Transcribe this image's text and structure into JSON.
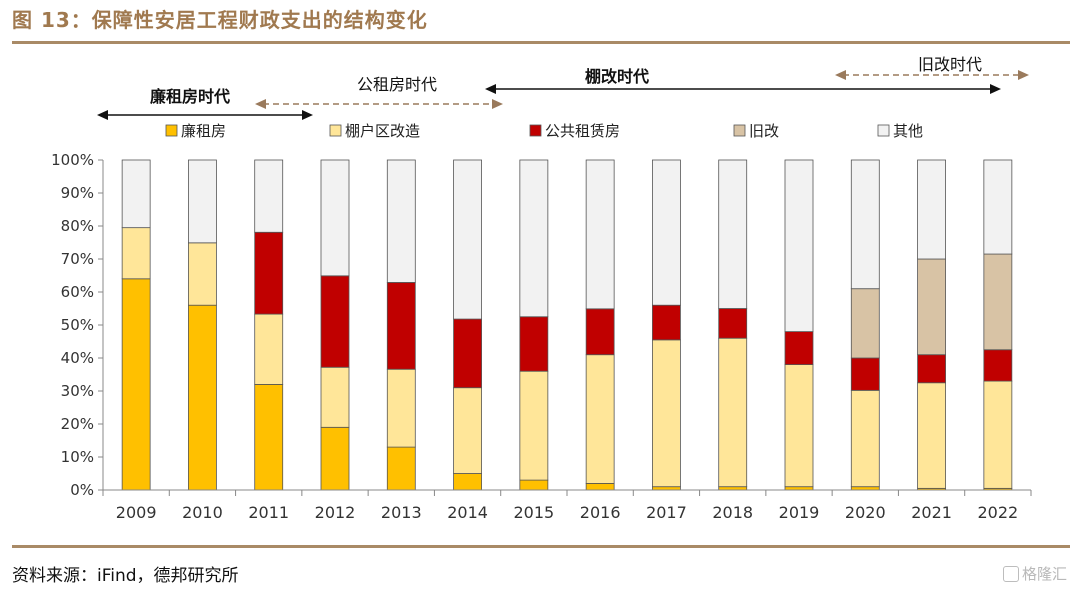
{
  "figure_title": "图 13：保障性安居工程财政支出的结构变化",
  "source_note": "资料来源：iFind，德邦研究所",
  "watermark": "格隆汇",
  "chart_data": {
    "type": "bar",
    "stacked": true,
    "categories": [
      "2009",
      "2010",
      "2011",
      "2012",
      "2013",
      "2014",
      "2015",
      "2016",
      "2017",
      "2018",
      "2019",
      "2020",
      "2021",
      "2022"
    ],
    "y_ticks": [
      "0%",
      "10%",
      "20%",
      "30%",
      "40%",
      "50%",
      "60%",
      "70%",
      "80%",
      "90%",
      "100%"
    ],
    "ylim": [
      0,
      100
    ],
    "legend_position": "top",
    "series": [
      {
        "name": "廉租房",
        "color": "#ffc000",
        "values": [
          64,
          56,
          32,
          19,
          13,
          5,
          3,
          2,
          1,
          1,
          1,
          1,
          0.5,
          0.5
        ]
      },
      {
        "name": "棚户区改造",
        "color": "#ffe699",
        "values": [
          15.5,
          18.9,
          21.3,
          18.2,
          23.6,
          26,
          33,
          39,
          44.5,
          45,
          37,
          29.2,
          32,
          32.5
        ]
      },
      {
        "name": "公共租赁房",
        "color": "#c00000",
        "values": [
          0,
          0,
          24.8,
          27.7,
          26.3,
          20.8,
          16.5,
          13.9,
          10.5,
          9,
          10,
          9.8,
          8.5,
          9.5
        ]
      },
      {
        "name": "旧改",
        "color": "#d8c3a5",
        "values": [
          0,
          0,
          0,
          0,
          0,
          0,
          0,
          0,
          0,
          0,
          0,
          21,
          29,
          29
        ]
      },
      {
        "name": "其他",
        "color": "#f2f2f2",
        "values": [
          20.5,
          25.1,
          21.9,
          35.1,
          37.1,
          48.2,
          47.5,
          45.1,
          44,
          45,
          52,
          39,
          30,
          28.5
        ]
      }
    ],
    "period_annotations": [
      {
        "label": "廉租房时代",
        "style": "solid",
        "from": "2009",
        "to": "2011"
      },
      {
        "label": "公租房时代",
        "style": "dashed",
        "from": "2011",
        "to": "2014"
      },
      {
        "label": "棚改时代",
        "style": "solid",
        "from": "2014",
        "to": "2022"
      },
      {
        "label": "旧改时代",
        "style": "dashed",
        "from": "2020",
        "to": "2022"
      }
    ]
  }
}
